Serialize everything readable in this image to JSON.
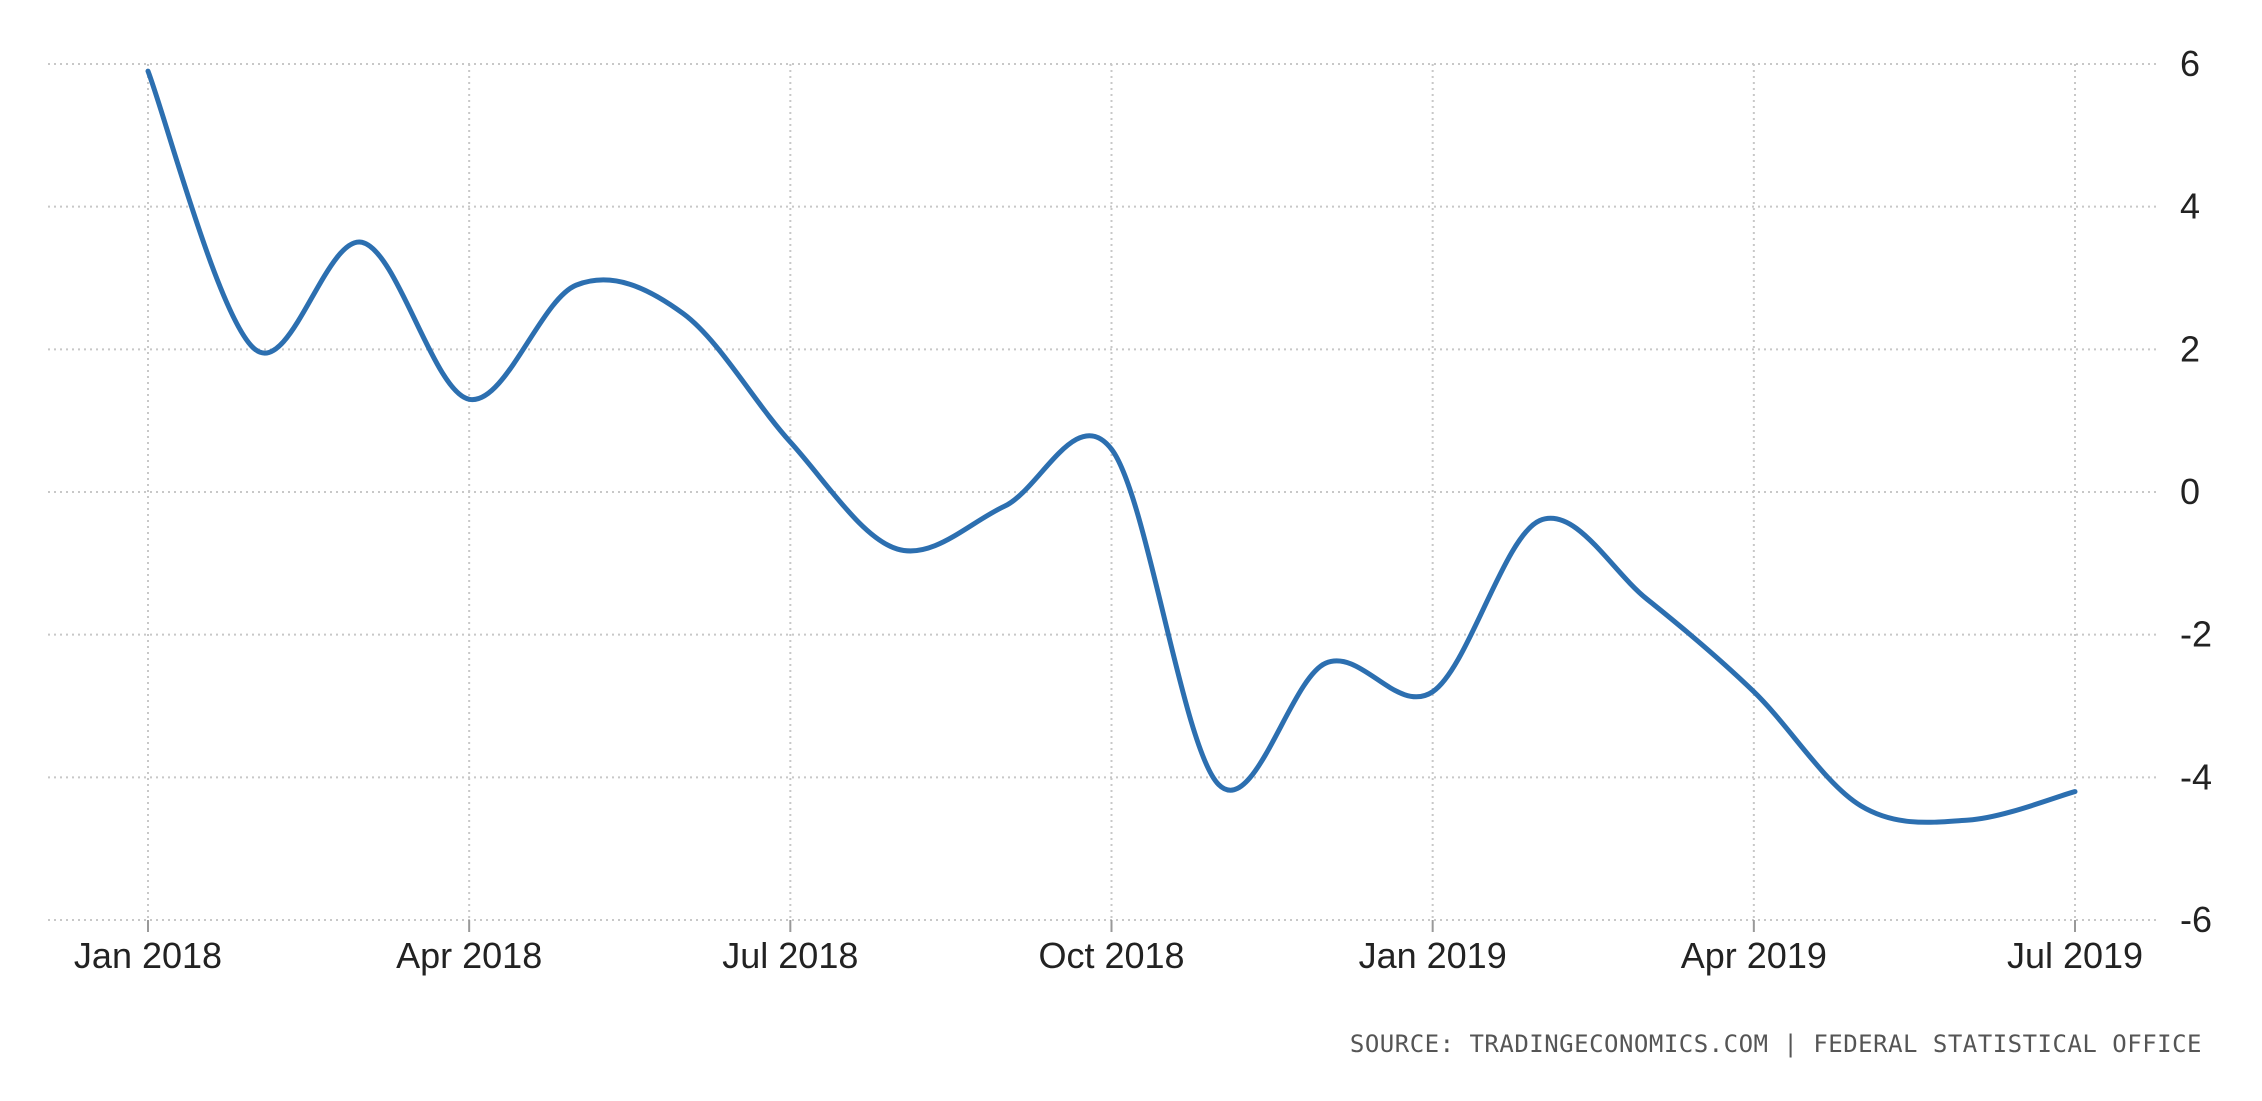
{
  "chart_data": {
    "type": "line",
    "title": "",
    "xlabel": "",
    "ylabel": "",
    "ylim": [
      -6,
      6
    ],
    "yticks": [
      "6",
      "4",
      "2",
      "0",
      "-2",
      "-4",
      "-6"
    ],
    "xticks": [
      "Jan 2018",
      "Apr 2018",
      "Jul 2018",
      "Oct 2018",
      "Jan 2019",
      "Apr 2019",
      "Jul 2019"
    ],
    "grid": true,
    "legend": "none",
    "y_axis_position": "right",
    "x": [
      "2018-01",
      "2018-02",
      "2018-03",
      "2018-04",
      "2018-05",
      "2018-06",
      "2018-07",
      "2018-08",
      "2018-09",
      "2018-10",
      "2018-11",
      "2018-12",
      "2019-01",
      "2019-02",
      "2019-03",
      "2019-04",
      "2019-05",
      "2019-06",
      "2019-07"
    ],
    "series": [
      {
        "color": "#2c6fb0",
        "values": [
          5.9,
          2.0,
          3.5,
          1.3,
          2.9,
          2.5,
          0.7,
          -0.8,
          -0.2,
          0.6,
          -4.1,
          -2.4,
          -2.8,
          -0.4,
          -1.5,
          -2.8,
          -4.4,
          -4.6,
          -4.2
        ]
      }
    ]
  },
  "footer": {
    "source": "SOURCE: TRADINGECONOMICS.COM | FEDERAL STATISTICAL OFFICE"
  }
}
